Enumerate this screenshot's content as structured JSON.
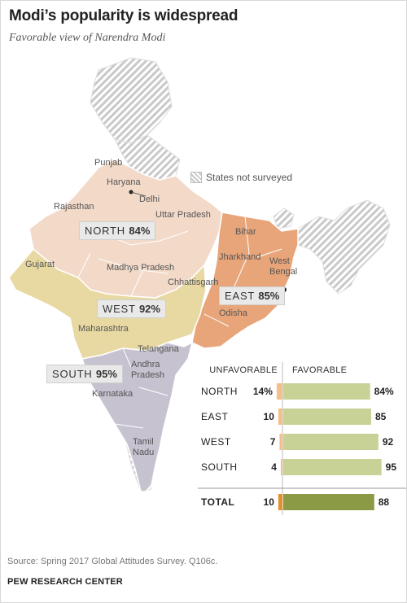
{
  "header": {
    "title": "Modi’s popularity is widespread",
    "subtitle": "Favorable view of Narendra Modi"
  },
  "map": {
    "legend_note": "States not surveyed",
    "region_tags": [
      {
        "name": "NORTH",
        "value": "84%"
      },
      {
        "name": "EAST",
        "value": "85%"
      },
      {
        "name": "WEST",
        "value": "92%"
      },
      {
        "name": "SOUTH",
        "value": "95%"
      }
    ],
    "state_labels": [
      "Punjab",
      "Haryana",
      "Delhi",
      "Rajasthan",
      "Uttar Pradesh",
      "Bihar",
      "Jharkhand",
      "West Bengal",
      "Gujarat",
      "Madhya Pradesh",
      "Chhattisgarh",
      "Odisha",
      "Maharashtra",
      "Telangana",
      "Andhra Pradesh",
      "Karnataka",
      "Tamil Nadu"
    ],
    "colors": {
      "north": "#f2d9c8",
      "east": "#e8a57a",
      "west": "#e8d9a3",
      "south": "#c6c2cf",
      "not_surveyed_hatch": "#c9c9c9",
      "border": "#ffffff"
    }
  },
  "chart_data": {
    "type": "bar",
    "left_header": "UNFAVORABLE",
    "right_header": "FAVORABLE",
    "categories": [
      "NORTH",
      "EAST",
      "WEST",
      "SOUTH",
      "TOTAL"
    ],
    "series": [
      {
        "name": "UNFAVORABLE",
        "values": [
          14,
          10,
          7,
          4,
          10
        ],
        "labels": [
          "14%",
          "10",
          "7",
          "4",
          "10"
        ]
      },
      {
        "name": "FAVORABLE",
        "values": [
          84,
          85,
          92,
          95,
          88
        ],
        "labels": [
          "84%",
          "85",
          "92",
          "95",
          "88"
        ]
      }
    ],
    "colors": {
      "unfavorable": "#f2c08a",
      "favorable": "#c8d196",
      "total_unfavorable": "#e5902b",
      "total_favorable": "#8b9a45"
    }
  },
  "footer": {
    "source": "Source: Spring 2017 Global Attitudes Survey. Q106c.",
    "brand": "PEW RESEARCH CENTER"
  }
}
